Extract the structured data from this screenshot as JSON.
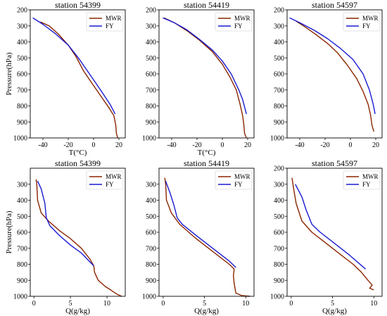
{
  "colors": {
    "MWR": "#8b2500",
    "FY": "#1a1ad0"
  },
  "chart_data": [
    {
      "type": "line",
      "title": "station  54399",
      "xlabel": "T(°C)",
      "ylabel": "Pressure(hPa)",
      "xlim": [
        -50,
        25
      ],
      "ylim": [
        1000,
        200
      ],
      "xticks": [
        "-40",
        "-20",
        "0",
        "20"
      ],
      "xtick_values": [
        -40,
        -20,
        0,
        20
      ],
      "yticks": [
        "200",
        "300",
        "400",
        "500",
        "600",
        "700",
        "800",
        "900",
        "1000"
      ],
      "legend": "top-right",
      "series": [
        {
          "name": "MWR",
          "points": [
            [
              -42,
              275
            ],
            [
              -35,
              300
            ],
            [
              -28,
              350
            ],
            [
              -20,
              420
            ],
            [
              -14,
              490
            ],
            [
              -8,
              580
            ],
            [
              -2,
              650
            ],
            [
              5,
              730
            ],
            [
              12,
              810
            ],
            [
              16,
              860
            ],
            [
              17.5,
              920
            ],
            [
              18,
              970
            ],
            [
              19,
              1000
            ]
          ]
        },
        {
          "name": "FY",
          "points": [
            [
              -48,
              250
            ],
            [
              -40,
              290
            ],
            [
              -30,
              350
            ],
            [
              -20,
              420
            ],
            [
              -12,
              500
            ],
            [
              -5,
              580
            ],
            [
              2,
              660
            ],
            [
              8,
              730
            ],
            [
              13,
              790
            ],
            [
              17,
              850
            ]
          ]
        }
      ]
    },
    {
      "type": "line",
      "title": "station  54419",
      "xlabel": "T(°C)",
      "ylabel": "",
      "xlim": [
        -50,
        25
      ],
      "ylim": [
        1000,
        200
      ],
      "xticks": [
        "-40",
        "-20",
        "0",
        "20"
      ],
      "xtick_values": [
        -40,
        -20,
        0,
        20
      ],
      "yticks": [
        "200",
        "300",
        "400",
        "500",
        "600",
        "700",
        "800",
        "900",
        "1000"
      ],
      "legend": "top-right",
      "series": [
        {
          "name": "MWR",
          "points": [
            [
              -46,
              250
            ],
            [
              -38,
              280
            ],
            [
              -28,
              330
            ],
            [
              -18,
              390
            ],
            [
              -8,
              460
            ],
            [
              0,
              540
            ],
            [
              6,
              620
            ],
            [
              11,
              700
            ],
            [
              14,
              790
            ],
            [
              16,
              860
            ],
            [
              17,
              920
            ],
            [
              17.5,
              970
            ],
            [
              19,
              1000
            ]
          ]
        },
        {
          "name": "FY",
          "points": [
            [
              -47,
              250
            ],
            [
              -38,
              280
            ],
            [
              -28,
              325
            ],
            [
              -18,
              385
            ],
            [
              -8,
              450
            ],
            [
              0,
              520
            ],
            [
              7,
              600
            ],
            [
              13,
              700
            ],
            [
              16,
              760
            ],
            [
              19,
              850
            ]
          ]
        }
      ]
    },
    {
      "type": "line",
      "title": "station  54597",
      "xlabel": "",
      "ylabel": "",
      "xlim": [
        -50,
        25
      ],
      "ylim": [
        1000,
        200
      ],
      "xticks": [
        "-40",
        "-20",
        "0",
        "20"
      ],
      "xtick_values": [
        -40,
        -20,
        0,
        20
      ],
      "yticks": [
        "200",
        "300",
        "400",
        "500",
        "600",
        "700",
        "800",
        "900",
        "1000"
      ],
      "legend": "top-right",
      "series": [
        {
          "name": "MWR",
          "points": [
            [
              -43,
              270
            ],
            [
              -37,
              300
            ],
            [
              -28,
              350
            ],
            [
              -18,
              410
            ],
            [
              -10,
              470
            ],
            [
              -2,
              550
            ],
            [
              5,
              630
            ],
            [
              10,
              710
            ],
            [
              14,
              790
            ],
            [
              16,
              860
            ],
            [
              17,
              920
            ],
            [
              18.5,
              960
            ]
          ]
        },
        {
          "name": "FY",
          "points": [
            [
              -48,
              250
            ],
            [
              -40,
              280
            ],
            [
              -28,
              330
            ],
            [
              -18,
              380
            ],
            [
              -8,
              440
            ],
            [
              2,
              510
            ],
            [
              10,
              600
            ],
            [
              15,
              700
            ],
            [
              18,
              790
            ],
            [
              19.5,
              850
            ]
          ]
        }
      ]
    },
    {
      "type": "line",
      "title": "station  54399",
      "xlabel": "Q(g/kg)",
      "ylabel": "Pressure(hPa)",
      "xlim": [
        -0.5,
        12.5
      ],
      "ylim": [
        1000,
        200
      ],
      "xticks": [
        "0",
        "5",
        "10"
      ],
      "xtick_values": [
        0,
        5,
        10
      ],
      "yticks": [
        "300",
        "400",
        "500",
        "600",
        "700",
        "800",
        "900",
        "1000"
      ],
      "legend": "top-right",
      "series": [
        {
          "name": "MWR",
          "points": [
            [
              0.3,
              270
            ],
            [
              0.4,
              300
            ],
            [
              0.5,
              400
            ],
            [
              1.0,
              480
            ],
            [
              2.0,
              530
            ],
            [
              3.5,
              590
            ],
            [
              5.0,
              640
            ],
            [
              6.5,
              700
            ],
            [
              7.7,
              770
            ],
            [
              8.2,
              810
            ],
            [
              8.3,
              850
            ],
            [
              8.8,
              900
            ],
            [
              9.8,
              940
            ],
            [
              10.5,
              960
            ],
            [
              11.3,
              985
            ],
            [
              12,
              1000
            ]
          ]
        },
        {
          "name": "FY",
          "points": [
            [
              0.5,
              280
            ],
            [
              1.0,
              330
            ],
            [
              1.5,
              420
            ],
            [
              1.7,
              510
            ],
            [
              2.2,
              560
            ],
            [
              3.5,
              620
            ],
            [
              5.0,
              680
            ],
            [
              6.5,
              730
            ],
            [
              8.2,
              810
            ]
          ]
        }
      ]
    },
    {
      "type": "line",
      "title": "station  54419",
      "xlabel": "Q(g/kg)",
      "ylabel": "",
      "xlim": [
        -0.5,
        11
      ],
      "ylim": [
        1000,
        200
      ],
      "xticks": [
        "0",
        "5",
        "10"
      ],
      "xtick_values": [
        0,
        5,
        10
      ],
      "yticks": [
        "300",
        "400",
        "500",
        "600",
        "700",
        "800",
        "900",
        "1000"
      ],
      "legend": "top-right",
      "series": [
        {
          "name": "MWR",
          "points": [
            [
              0.2,
              260
            ],
            [
              0.3,
              300
            ],
            [
              0.4,
              400
            ],
            [
              1.0,
              480
            ],
            [
              2.0,
              550
            ],
            [
              4.0,
              640
            ],
            [
              6.0,
              720
            ],
            [
              8.0,
              800
            ],
            [
              8.6,
              830
            ],
            [
              8.5,
              870
            ],
            [
              8.6,
              920
            ],
            [
              8.8,
              980
            ],
            [
              9.5,
              995
            ],
            [
              10.5,
              1000
            ]
          ]
        },
        {
          "name": "FY",
          "points": [
            [
              0.3,
              280
            ],
            [
              0.8,
              350
            ],
            [
              1.3,
              430
            ],
            [
              1.7,
              510
            ],
            [
              2.3,
              550
            ],
            [
              4.0,
              620
            ],
            [
              6.0,
              700
            ],
            [
              8.0,
              780
            ],
            [
              8.8,
              820
            ]
          ]
        }
      ]
    },
    {
      "type": "line",
      "title": "station  54597",
      "xlabel": "Q(g/kg)",
      "ylabel": "",
      "xlim": [
        -0.5,
        11
      ],
      "ylim": [
        1000,
        200
      ],
      "xticks": [
        "0",
        "5",
        "10"
      ],
      "xtick_values": [
        0,
        5,
        10
      ],
      "yticks": [
        "200",
        "300",
        "400",
        "500",
        "600",
        "700",
        "800",
        "900",
        "1000"
      ],
      "legend": "top-right",
      "series": [
        {
          "name": "MWR",
          "points": [
            [
              0.1,
              260
            ],
            [
              0.3,
              330
            ],
            [
              0.6,
              420
            ],
            [
              1.3,
              530
            ],
            [
              2.5,
              600
            ],
            [
              4.0,
              660
            ],
            [
              6.0,
              740
            ],
            [
              7.5,
              800
            ],
            [
              8.5,
              850
            ],
            [
              9.3,
              900
            ],
            [
              9.8,
              930
            ],
            [
              9.5,
              950
            ],
            [
              10,
              960
            ]
          ]
        },
        {
          "name": "FY",
          "points": [
            [
              0.5,
              300
            ],
            [
              1.3,
              380
            ],
            [
              1.8,
              460
            ],
            [
              2.5,
              550
            ],
            [
              3.5,
              600
            ],
            [
              5.0,
              660
            ],
            [
              7.0,
              740
            ],
            [
              9.0,
              830
            ]
          ]
        }
      ]
    }
  ]
}
